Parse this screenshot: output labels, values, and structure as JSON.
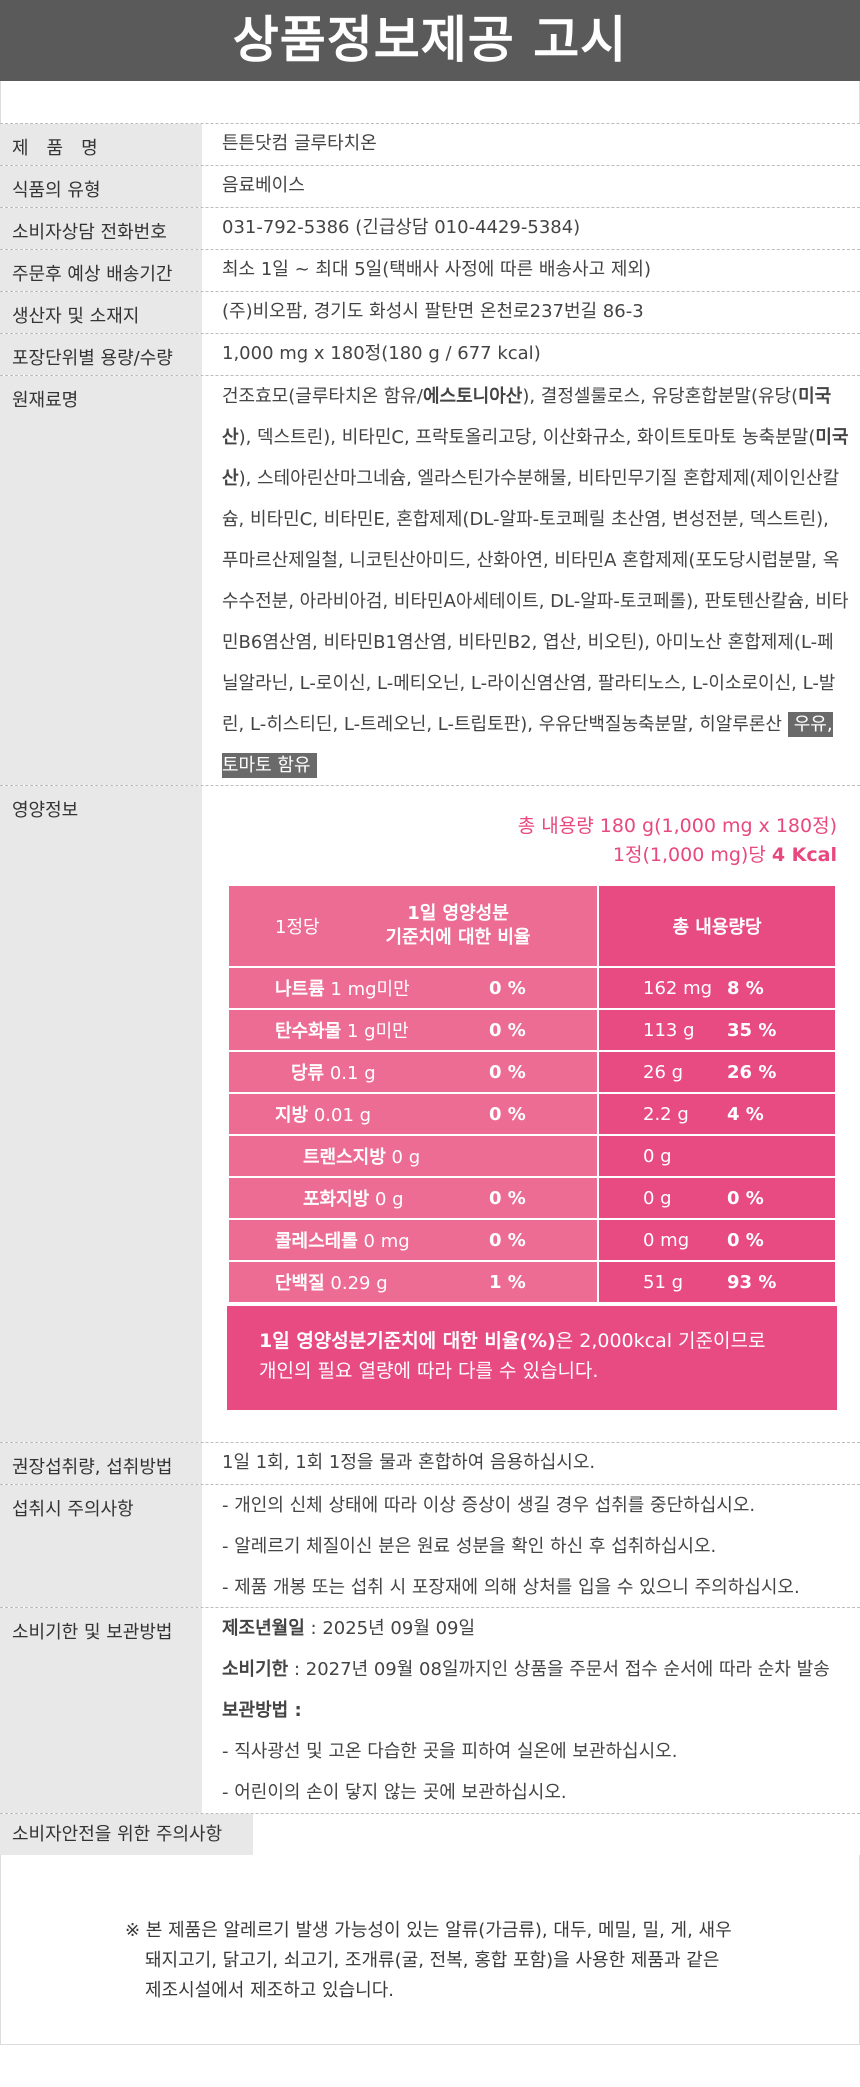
{
  "header": {
    "title": "상품정보제공 고시"
  },
  "info_rows": [
    {
      "label": "제　품　명",
      "value": "튼튼닷컴 글루타치온"
    },
    {
      "label": "식품의 유형",
      "value": "음료베이스"
    },
    {
      "label": "소비자상담 전화번호",
      "value": "031-792-5386 (긴급상담 010-4429-5384)"
    },
    {
      "label": "주문후 예상 배송기간",
      "value": "최소 1일 ~ 최대 5일(택배사 사정에 따른 배송사고 제외)"
    },
    {
      "label": "생산자 및 소재지",
      "value": "(주)비오팜, 경기도 화성시 팔탄면 온천로237번길 86-3"
    },
    {
      "label": "포장단위별 용량/수량",
      "value": "1,000 mg x 180정(180 g / 677 kcal)"
    }
  ],
  "ingredients": {
    "label": "원재료명",
    "parts": [
      "건조효모(글루타치온 함유/",
      "에스토니아산",
      "), 결정셀룰로스, 유당혼합분말(유당(",
      "미국산",
      "), 덱스트린), 비타민C, 프락토올리고당, 이산화규소, 화이트토마토 농축분말(",
      "미국산",
      "), 스테아린산마그네슘, 엘라스틴가수분해물, 비타민무기질 혼합제제(제이인산칼슘, 비타민C, 비타민E, 혼합제제(DL-알파-토코페릴 초산염, 변성전분, 덱스트린), 푸마르산제일철, 니코틴산아미드, 산화아연, 비타민A 혼합제제(포도당시럽분말, 옥수수전분, 아라비아검, 비타민A아세테이트, DL-알파-토코페롤), 판토텐산칼슘, 비타민B6염산염, 비타민B1염산염, 비타민B2, 엽산, 비오틴), 아미노산 혼합제제(L-페닐알라닌, L-로이신, L-메티오닌, L-라이신염산염, 팔라티노스, L-이소로이신, L-발린, L-히스티딘, L-트레오닌, L-트립토판), 우유단백질농축분말, 히알루론산 "
    ],
    "allergen_badge": "우유, 토마토 함유"
  },
  "nutrition": {
    "label": "영양정보",
    "total_line": "총 내용량 180 g(1,000 mg x 180정)",
    "per_unit_prefix": "1정(1,000 mg)당 ",
    "per_unit_kcal": "4 Kcal",
    "head_left_a": "1정당",
    "head_left_b": "1일 영양성분",
    "head_left_c": "기준치에 대한 비율",
    "head_right": "총 내용량당",
    "rows": [
      {
        "name": "나트륨",
        "amount": "1 mg미만",
        "pct": "0 %",
        "total": "162 mg",
        "total_pct": "8 %"
      },
      {
        "name": "탄수화물",
        "amount": "1 g미만",
        "pct": "0 %",
        "total": "113 g",
        "total_pct": "35 %"
      },
      {
        "name": "당류",
        "amount": " 0.1 g",
        "pct": "0 %",
        "total": "26 g",
        "total_pct": "26 %"
      },
      {
        "name": "지방",
        "amount": "0.01 g",
        "pct": "0 %",
        "total": "2.2 g",
        "total_pct": "4 %"
      },
      {
        "name": "트랜스지방",
        "amount": " 0 g",
        "pct": "",
        "total": "0 g",
        "total_pct": ""
      },
      {
        "name": "포화지방",
        "amount": " 0 g",
        "pct": "0 %",
        "total": "0 g",
        "total_pct": "0 %"
      },
      {
        "name": "콜레스테롤",
        "amount": "0 mg",
        "pct": "0 %",
        "total": "0 mg",
        "total_pct": "0 %"
      },
      {
        "name": "단백질",
        "amount": " 0.29 g",
        "pct": "1 %",
        "total": "51 g",
        "total_pct": "93 %"
      }
    ],
    "note_bold": "1일 영양성분기준치에 대한 비율(%)",
    "note_rest_1": "은 2,000kcal 기준이므로",
    "note_line2": "개인의 필요 열량에 따라 다를 수 있습니다."
  },
  "intake": {
    "label": "권장섭취량, 섭취방법",
    "value": "1일 1회, 1회 1정을 물과 혼합하여 음용하십시오."
  },
  "caution": {
    "label": "섭취시 주의사항",
    "lines": [
      "- 개인의 신체 상태에 따라 이상 증상이 생길 경우 섭취를 중단하십시오.",
      "- 알레르기 체질이신 분은 원료 성분을 확인 하신 후 섭취하십시오.",
      "- 제품 개봉 또는 섭취 시 포장재에 의해 상처를 입을 수 있으니 주의하십시오."
    ]
  },
  "storage": {
    "label": "소비기한 및 보관방법",
    "mfg_label": "제조년월일",
    "mfg_value": " : 2025년 09월 09일",
    "exp_label": "소비기한",
    "exp_value": " : 2027년 09월 08일까지인 상품을 주문서 접수 순서에 따라 순차 발송",
    "keep_label": "보관방법 :",
    "keep_lines": [
      "- 직사광선 및 고온 다습한 곳을 피하여 실온에 보관하십시오.",
      "- 어린이의 손이 닿지 않는 곳에 보관하십시오."
    ]
  },
  "safety": {
    "label": "소비자안전을 위한 주의사항",
    "line1": "※ 본 제품은 알레르기 발생 가능성이 있는 알류(가금류), 대두, 메밀, 밀, 게, 새우",
    "line2": "돼지고기, 닭고기, 쇠고기, 조개류(굴, 전복, 홍합 포함)을 사용한 제품과 같은",
    "line3": "제조시설에서 제조하고 있습니다."
  }
}
